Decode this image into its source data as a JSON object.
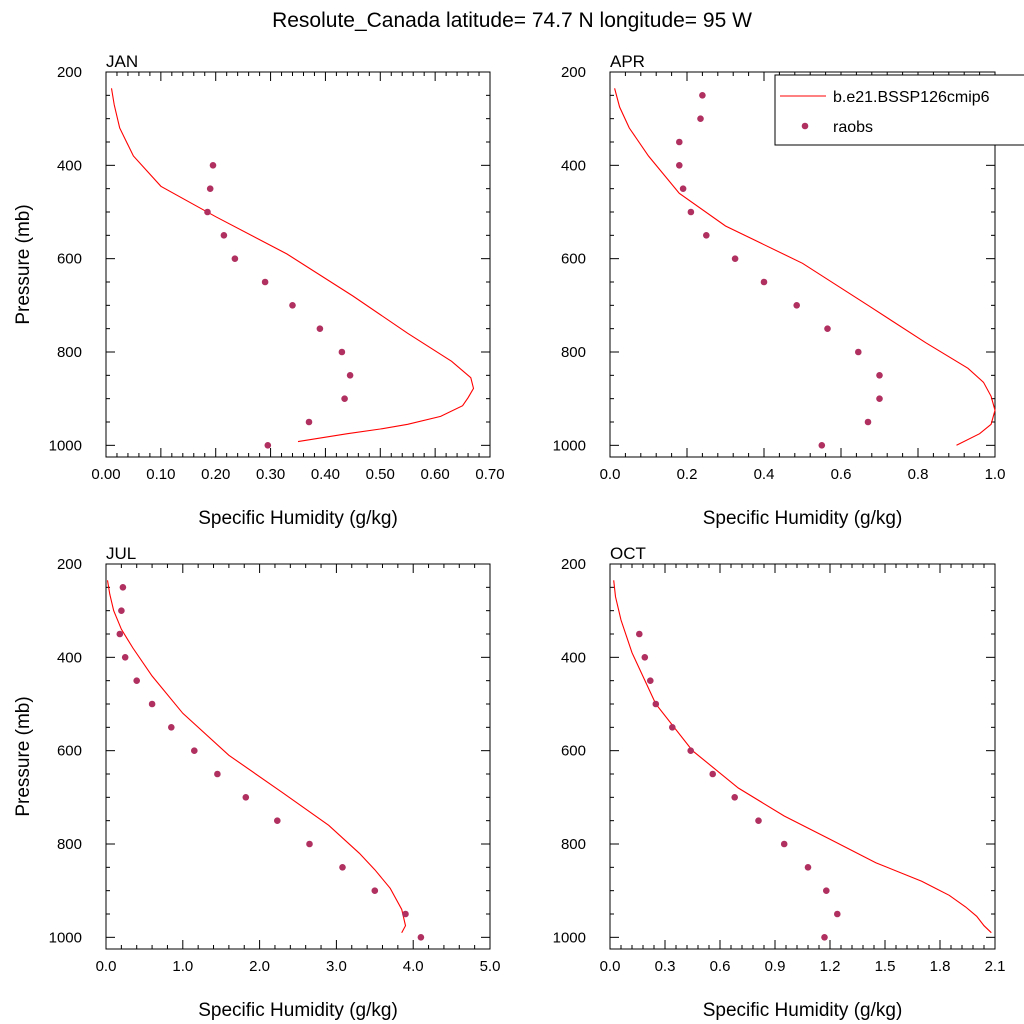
{
  "figure_title": "Resolute_Canada  latitude= 74.7 N longitude= 95 W",
  "legend": {
    "model_label": "b.e21.BSSP126cmip6",
    "obs_label": "raobs",
    "placement": "top-right",
    "model_color": "#ff0000",
    "obs_color": "#b03060"
  },
  "chart_data": [
    {
      "type": "line",
      "title": "JAN",
      "xlabel": "Specific Humidity (g/kg)",
      "ylabel": "Pressure (mb)",
      "xlim": [
        0.0,
        0.7
      ],
      "ylim": [
        200,
        1025
      ],
      "y_inverted": true,
      "xticks": [
        "0.00",
        "0.10",
        "0.20",
        "0.30",
        "0.40",
        "0.50",
        "0.60",
        "0.70"
      ],
      "yticks": [
        "200",
        "400",
        "600",
        "800",
        "1000"
      ],
      "series": [
        {
          "kind": "line",
          "x": [
            0.35,
            0.44,
            0.5,
            0.55,
            0.61,
            0.65,
            0.66,
            0.67,
            0.665,
            0.63,
            0.55,
            0.45,
            0.33,
            0.2,
            0.1,
            0.05,
            0.025,
            0.015,
            0.01
          ],
          "y": [
            992,
            975,
            965,
            955,
            938,
            915,
            898,
            878,
            855,
            820,
            760,
            680,
            590,
            510,
            445,
            380,
            320,
            270,
            235
          ]
        },
        {
          "kind": "scatter",
          "x": [
            0.295,
            0.37,
            0.435,
            0.445,
            0.43,
            0.39,
            0.34,
            0.29,
            0.235,
            0.215,
            0.185,
            0.19,
            0.195
          ],
          "y": [
            1000,
            950,
            900,
            850,
            800,
            750,
            700,
            650,
            600,
            550,
            500,
            450,
            400
          ]
        }
      ]
    },
    {
      "type": "line",
      "title": "APR",
      "xlabel": "Specific Humidity (g/kg)",
      "ylabel": "",
      "xlim": [
        0.0,
        1.0
      ],
      "ylim": [
        200,
        1025
      ],
      "y_inverted": true,
      "xticks": [
        "0.0",
        "0.2",
        "0.4",
        "0.6",
        "0.8",
        "1.0"
      ],
      "yticks": [
        "200",
        "400",
        "600",
        "800",
        "1000"
      ],
      "series": [
        {
          "kind": "line",
          "x": [
            0.9,
            0.96,
            0.99,
            1.0,
            0.99,
            0.97,
            0.93,
            0.82,
            0.67,
            0.5,
            0.3,
            0.18,
            0.1,
            0.05,
            0.025,
            0.012
          ],
          "y": [
            1000,
            975,
            955,
            925,
            895,
            865,
            835,
            780,
            700,
            610,
            530,
            460,
            380,
            320,
            275,
            235
          ]
        },
        {
          "kind": "scatter",
          "x": [
            0.55,
            0.67,
            0.7,
            0.7,
            0.645,
            0.565,
            0.485,
            0.4,
            0.325,
            0.25,
            0.21,
            0.19,
            0.18,
            0.18,
            0.235,
            0.24
          ],
          "y": [
            1000,
            950,
            900,
            850,
            800,
            750,
            700,
            650,
            600,
            550,
            500,
            450,
            400,
            350,
            300,
            250
          ]
        }
      ]
    },
    {
      "type": "line",
      "title": "JUL",
      "xlabel": "Specific Humidity (g/kg)",
      "ylabel": "Pressure (mb)",
      "xlim": [
        0.0,
        5.0
      ],
      "ylim": [
        200,
        1025
      ],
      "y_inverted": true,
      "xticks": [
        "0.0",
        "1.0",
        "2.0",
        "3.0",
        "4.0",
        "5.0"
      ],
      "yticks": [
        "200",
        "400",
        "600",
        "800",
        "1000"
      ],
      "series": [
        {
          "kind": "line",
          "x": [
            3.85,
            3.9,
            3.85,
            3.7,
            3.5,
            3.3,
            2.9,
            2.3,
            1.6,
            1.0,
            0.6,
            0.35,
            0.2,
            0.1,
            0.05,
            0.02
          ],
          "y": [
            990,
            975,
            940,
            895,
            855,
            820,
            760,
            690,
            610,
            520,
            440,
            380,
            340,
            300,
            265,
            235
          ]
        },
        {
          "kind": "scatter",
          "x": [
            4.1,
            3.9,
            3.5,
            3.08,
            2.65,
            2.23,
            1.82,
            1.45,
            1.15,
            0.85,
            0.6,
            0.4,
            0.25,
            0.18,
            0.2,
            0.22
          ],
          "y": [
            1000,
            950,
            900,
            850,
            800,
            750,
            700,
            650,
            600,
            550,
            500,
            450,
            400,
            350,
            300,
            250
          ]
        }
      ]
    },
    {
      "type": "line",
      "title": "OCT",
      "xlabel": "Specific Humidity (g/kg)",
      "ylabel": "",
      "xlim": [
        0.0,
        2.1
      ],
      "ylim": [
        200,
        1025
      ],
      "y_inverted": true,
      "xticks": [
        "0.0",
        "0.3",
        "0.6",
        "0.9",
        "1.2",
        "1.5",
        "1.8",
        "2.1"
      ],
      "yticks": [
        "200",
        "400",
        "600",
        "800",
        "1000"
      ],
      "series": [
        {
          "kind": "line",
          "x": [
            2.08,
            2.04,
            2.0,
            1.94,
            1.85,
            1.7,
            1.45,
            1.2,
            0.95,
            0.7,
            0.45,
            0.25,
            0.12,
            0.06,
            0.03,
            0.02
          ],
          "y": [
            990,
            975,
            955,
            935,
            910,
            880,
            840,
            790,
            740,
            680,
            600,
            500,
            390,
            320,
            270,
            235
          ]
        },
        {
          "kind": "scatter",
          "x": [
            1.17,
            1.24,
            1.18,
            1.08,
            0.95,
            0.81,
            0.68,
            0.56,
            0.44,
            0.34,
            0.25,
            0.22,
            0.19,
            0.16
          ],
          "y": [
            1000,
            950,
            900,
            850,
            800,
            750,
            700,
            650,
            600,
            550,
            500,
            450,
            400,
            350
          ]
        }
      ]
    }
  ]
}
